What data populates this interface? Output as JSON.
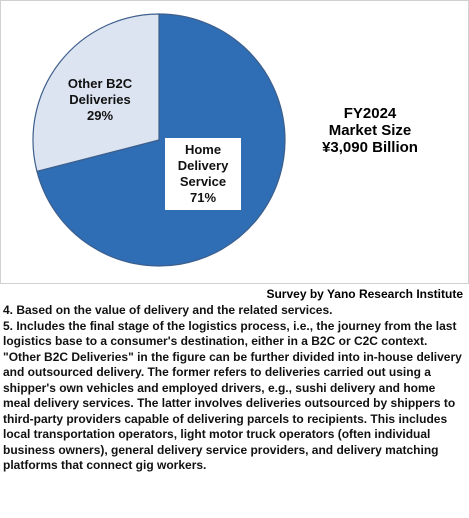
{
  "chart_data": {
    "type": "pie",
    "categories": [
      "Home Delivery Service",
      "Other B2C Deliveries"
    ],
    "values": [
      71,
      29
    ],
    "value_labels": [
      "71%",
      "29%"
    ],
    "colors": [
      "#2f6db5",
      "#dde4f1"
    ],
    "annotation": [
      "FY2024",
      "Market Size",
      "¥3,090 Billion"
    ],
    "source": "Survey by Yano Research Institute"
  },
  "notes": [
    "4. Based on the value of delivery and the related services.",
    "5. Includes the final stage of the logistics process, i.e., the journey from the last logistics base to a consumer's destination, either in a B2C or C2C context. \"Other B2C Deliveries\" in the figure can be further divided into in-house delivery and outsourced delivery. The former refers to deliveries carried out using a shipper's own vehicles and employed drivers, e.g., sushi delivery and home meal delivery services. The latter involves deliveries outsourced by shippers to third-party providers capable of delivering parcels to recipients. This includes local transportation operators, light motor truck operators (often individual business owners), general delivery service providers, and delivery matching platforms that connect gig workers."
  ]
}
